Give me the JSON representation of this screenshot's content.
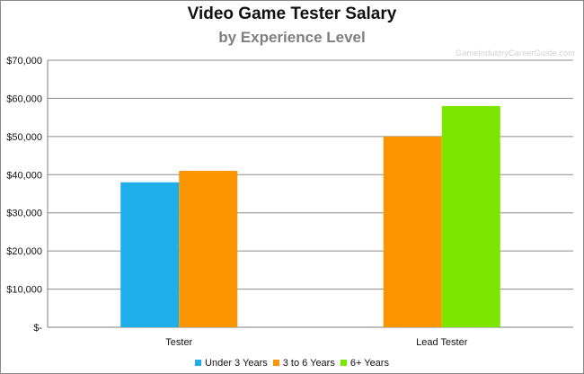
{
  "watermark": "GameIndustryCareerGuide.com",
  "chart_data": {
    "type": "bar",
    "title": "Video Game Tester Salary",
    "subtitle": "by Experience Level",
    "categories": [
      "Tester",
      "Lead Tester"
    ],
    "series": [
      {
        "name": "Under 3 Years",
        "color": "#1eaee9",
        "values": [
          38000,
          null
        ]
      },
      {
        "name": "3 to 6 Years",
        "color": "#fb9600",
        "values": [
          41000,
          50000
        ]
      },
      {
        "name": "6+ Years",
        "color": "#7ce600",
        "values": [
          null,
          58000
        ]
      }
    ],
    "ylim": [
      0,
      70000
    ],
    "yticks": [
      0,
      10000,
      20000,
      30000,
      40000,
      50000,
      60000,
      70000
    ],
    "ytick_labels": [
      "$-",
      "$10,000",
      "$20,000",
      "$30,000",
      "$40,000",
      "$50,000",
      "$60,000",
      "$70,000"
    ],
    "grid": true,
    "legend_position": "bottom"
  }
}
